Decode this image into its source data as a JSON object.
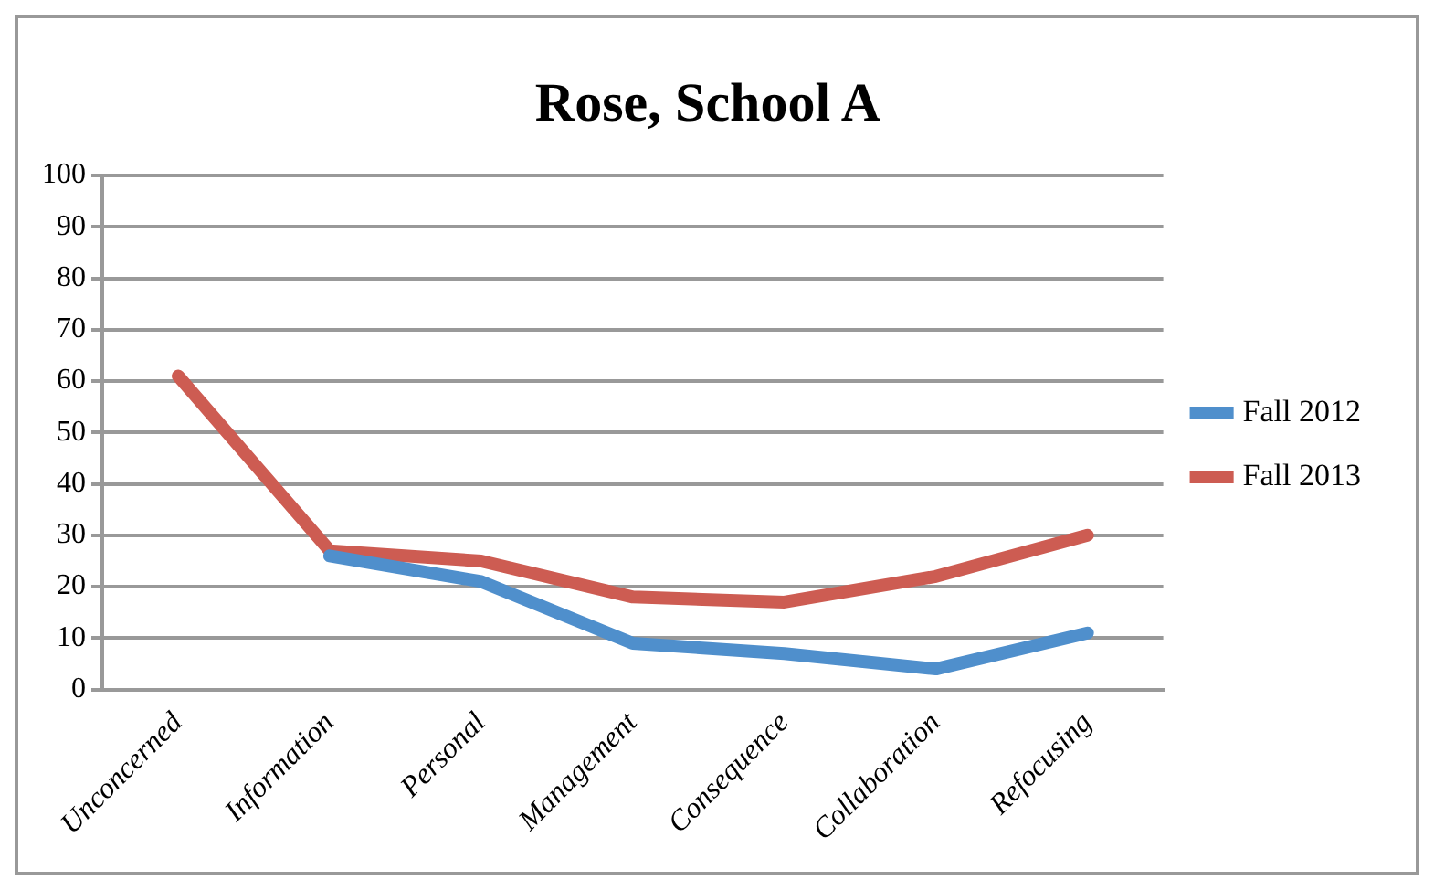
{
  "chart_data": {
    "type": "line",
    "title": "Rose, School A",
    "categories": [
      "Unconcerned",
      "Information",
      "Personal",
      "Management",
      "Consequence",
      "Collaboration",
      "Refocusing"
    ],
    "series": [
      {
        "name": "Fall 2012",
        "color": "#4f8fcc",
        "values": [
          null,
          26,
          21,
          9,
          7,
          4,
          11
        ]
      },
      {
        "name": "Fall 2013",
        "color": "#cd5c52",
        "values": [
          61,
          27,
          25,
          18,
          17,
          22,
          30
        ]
      }
    ],
    "ylim": [
      0,
      100
    ],
    "yticks": [
      0,
      10,
      20,
      30,
      40,
      50,
      60,
      70,
      80,
      90,
      100
    ],
    "grid": "y",
    "legend": "right",
    "marker": "none"
  }
}
